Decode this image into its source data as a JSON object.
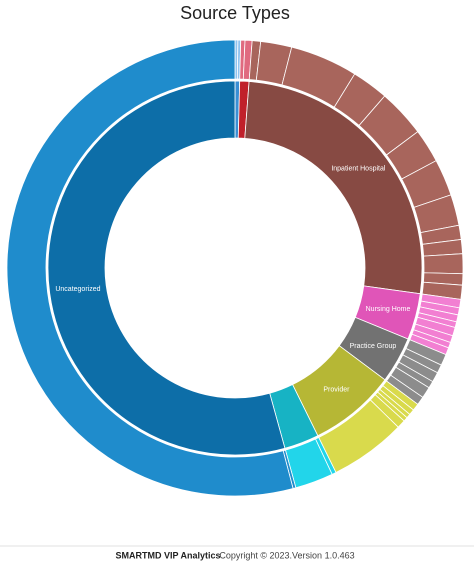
{
  "chart_data": {
    "type": "sunburst",
    "title": "Source Types",
    "categories": [
      null,
      null,
      "Inpatient Hospital",
      "Nursing Home",
      "Practice Group",
      "Provider",
      null,
      "Uncategorized"
    ],
    "values": [
      0.4,
      0.8,
      26,
      4,
      4,
      7.5,
      3,
      54.3
    ],
    "colors": [
      "#3a8fd4",
      "#c0202a",
      "#874a43",
      "#e055b8",
      "#727272",
      "#b6b735",
      "#17b3c4",
      "#0d6ea8"
    ],
    "children": [
      {
        "color": "#90c4ef",
        "values": [
          0.2,
          0.2
        ]
      },
      {
        "color": "#e06a80",
        "values": [
          0.3,
          0.5
        ]
      },
      {
        "color": "#a8655c",
        "values": [
          0.6,
          2.2,
          4.8,
          2.6,
          3.4,
          2.4,
          2.6,
          2.2,
          1.0,
          1.0,
          1.4,
          0.8,
          1.0
        ]
      },
      {
        "color": "#f27fd2",
        "values": [
          0.6,
          0.5,
          0.5,
          0.4,
          0.6,
          0.5,
          0.4,
          0.5
        ]
      },
      {
        "color": "#8c8c8c",
        "values": [
          0.8,
          0.6,
          0.7,
          0.5,
          0.8,
          0.6
        ]
      },
      {
        "color": "#d9da4c",
        "values": [
          0.5,
          0.4,
          0.3,
          0.3,
          0.6,
          5.4
        ]
      },
      {
        "color": "#22d5ea",
        "values": [
          0.3,
          2.7
        ]
      },
      {
        "color": "#1f8ccc",
        "values": [
          0.2,
          54.1
        ]
      }
    ]
  },
  "footer": {
    "brand": "SMARTMD VIP Analytics",
    "copyright": "Copyright © 2023.Version 1.0.463"
  }
}
